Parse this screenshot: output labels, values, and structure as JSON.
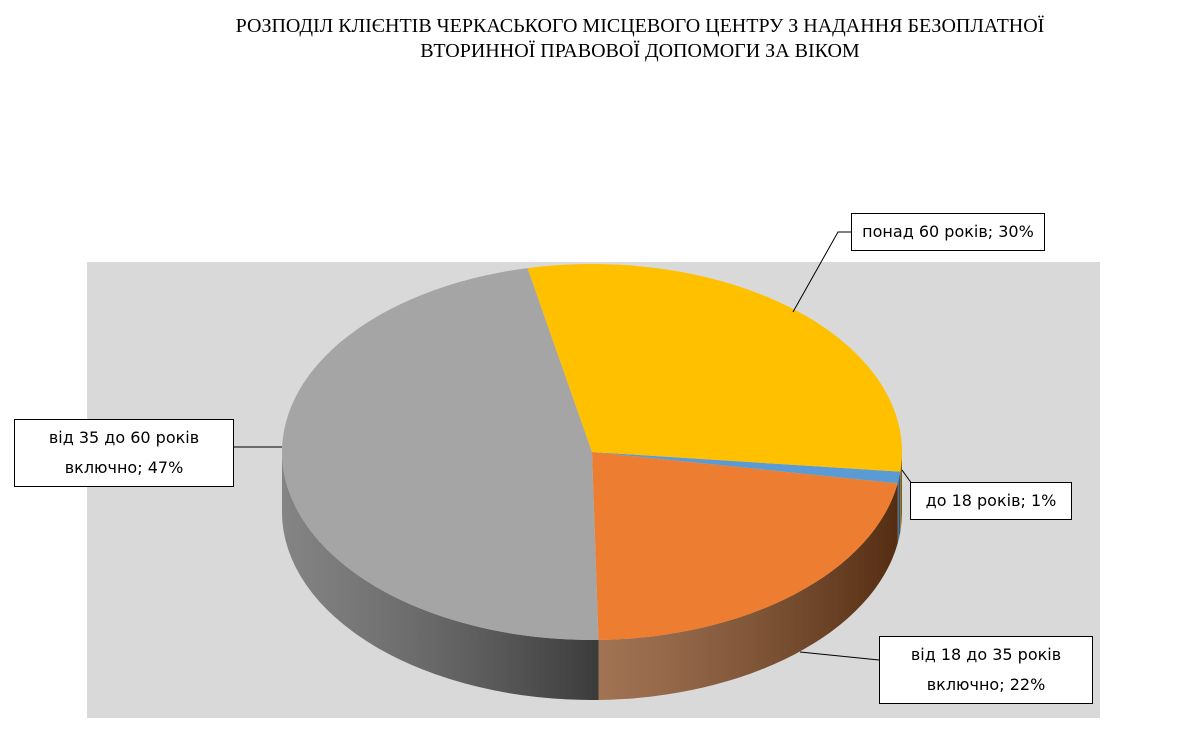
{
  "chart_data": {
    "type": "pie",
    "title": "РОЗПОДІЛ КЛІЄНТІВ ЧЕРКАСЬКОГО МІСЦЕВОГО ЦЕНТРУ З НАДАННЯ БЕЗОПЛАТНОЇ ВТОРИННОЇ ПРАВОВОЇ ДОПОМОГИ ЗА ВІКОМ",
    "categories": [
      "до 18 років",
      "від 18 до 35 років включно",
      "від 35 до 60 років включно",
      "понад 60 років"
    ],
    "values": [
      1,
      22,
      47,
      30
    ],
    "value_labels": [
      "1%",
      "22%",
      "47%",
      "30%"
    ],
    "colors": [
      "#5b9bd5",
      "#ed7d31",
      "#a5a5a5",
      "#ffc000"
    ]
  }
}
